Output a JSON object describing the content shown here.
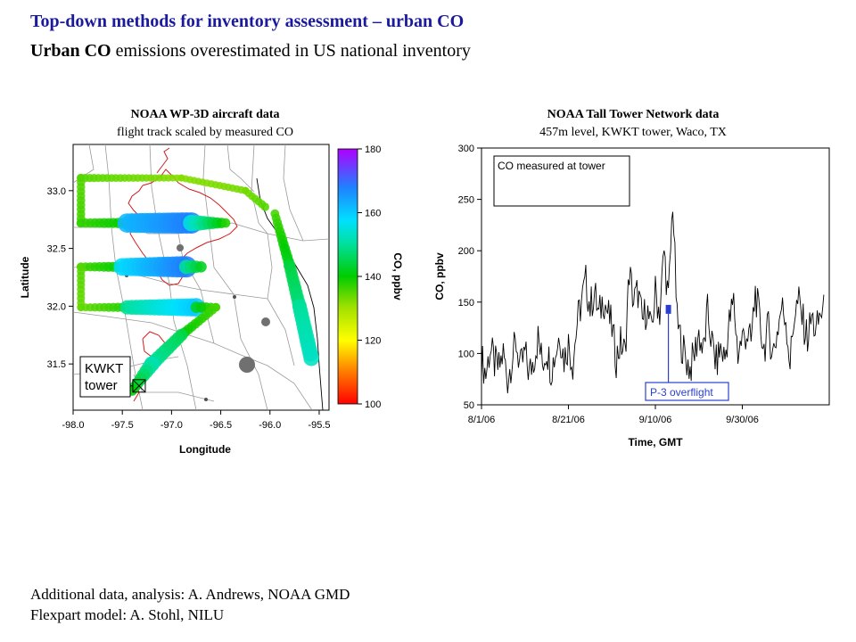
{
  "slide": {
    "title": "Top-down methods for inventory assessment – urban CO",
    "subtitle_bold": "Urban CO",
    "subtitle_rest": " emissions overestimated in US national inventory",
    "credits": [
      "Additional data, analysis: A. Andrews, NOAA GMD",
      "Flexpart model: A. Stohl, NILU"
    ]
  },
  "colors": {
    "title": "#1a1a9c",
    "map_county": "#9a9a9a",
    "map_city": "#cc1f1f",
    "ts_line": "#000000",
    "annotation_blue": "#2a3fd0",
    "marker_green": "#2ea82e",
    "gray_dot": "#707070"
  },
  "chart_data": [
    {
      "type": "scatter",
      "title": "NOAA WP-3D aircraft data",
      "subtitle": "flight track scaled by measured CO",
      "xlabel": "Longitude",
      "ylabel": "Latitude",
      "xlim": [
        -98.0,
        -95.4
      ],
      "ylim": [
        31.1,
        33.4
      ],
      "xticks": [
        "-98.0",
        "-97.5",
        "-97.0",
        "-96.5",
        "-96.0",
        "-95.5"
      ],
      "xtick_values": [
        -98.0,
        -97.5,
        -97.0,
        -96.5,
        -96.0,
        -95.5
      ],
      "yticks": [
        "31.5",
        "32.0",
        "32.5",
        "33.0"
      ],
      "ytick_values": [
        31.5,
        32.0,
        32.5,
        33.0
      ],
      "colorbar": {
        "label": "CO, ppbv",
        "range": [
          100,
          180
        ],
        "ticks": [
          "100",
          "120",
          "140",
          "160",
          "180"
        ],
        "tick_values": [
          100,
          120,
          140,
          160,
          180
        ]
      },
      "site_label": [
        "KWKT",
        "tower"
      ],
      "site": {
        "lon": -97.33,
        "lat": 31.31
      },
      "flight_track": [
        {
          "lon0": -97.92,
          "lat0": 33.11,
          "lon1": -96.9,
          "lat1": 33.11,
          "co0": 135,
          "co1": 132
        },
        {
          "lon0": -96.9,
          "lat0": 33.11,
          "lon1": -96.25,
          "lat1": 33.0,
          "co0": 132,
          "co1": 133
        },
        {
          "lon0": -96.25,
          "lat0": 33.0,
          "lon1": -96.05,
          "lat1": 32.86,
          "co0": 133,
          "co1": 135
        },
        {
          "lon0": -97.92,
          "lat0": 33.11,
          "lon1": -97.92,
          "lat1": 32.72,
          "co0": 135,
          "co1": 136
        },
        {
          "lon0": -97.92,
          "lat0": 32.72,
          "lon1": -97.45,
          "lat1": 32.72,
          "co0": 137,
          "co1": 140
        },
        {
          "lon0": -97.45,
          "lat0": 32.72,
          "lon1": -96.8,
          "lat1": 32.72,
          "co0": 162,
          "co1": 168
        },
        {
          "lon0": -96.8,
          "lat0": 32.72,
          "lon1": -96.45,
          "lat1": 32.72,
          "co0": 155,
          "co1": 138
        },
        {
          "lon0": -97.92,
          "lat0": 32.34,
          "lon1": -97.5,
          "lat1": 32.34,
          "co0": 136,
          "co1": 140
        },
        {
          "lon0": -97.5,
          "lat0": 32.34,
          "lon1": -96.85,
          "lat1": 32.34,
          "co0": 158,
          "co1": 168
        },
        {
          "lon0": -96.85,
          "lat0": 32.34,
          "lon1": -96.7,
          "lat1": 32.34,
          "co0": 150,
          "co1": 142
        },
        {
          "lon0": -97.92,
          "lat0": 32.34,
          "lon1": -97.92,
          "lat1": 31.99,
          "co0": 135,
          "co1": 134
        },
        {
          "lon0": -97.92,
          "lat0": 31.99,
          "lon1": -97.45,
          "lat1": 31.99,
          "co0": 134,
          "co1": 138
        },
        {
          "lon0": -97.45,
          "lat0": 31.99,
          "lon1": -96.75,
          "lat1": 31.99,
          "co0": 150,
          "co1": 160
        },
        {
          "lon0": -96.75,
          "lat0": 31.99,
          "lon1": -96.55,
          "lat1": 31.99,
          "co0": 142,
          "co1": 136
        },
        {
          "lon0": -96.55,
          "lat0": 31.99,
          "lon1": -96.9,
          "lat1": 31.75,
          "co0": 136,
          "co1": 140
        },
        {
          "lon0": -96.9,
          "lat0": 31.75,
          "lon1": -97.2,
          "lat1": 31.5,
          "co0": 145,
          "co1": 150
        },
        {
          "lon0": -97.2,
          "lat0": 31.5,
          "lon1": -97.4,
          "lat1": 31.27,
          "co0": 152,
          "co1": 140
        },
        {
          "lon0": -95.95,
          "lat0": 32.8,
          "lon1": -95.8,
          "lat1": 32.35,
          "co0": 136,
          "co1": 142
        },
        {
          "lon0": -95.8,
          "lat0": 32.35,
          "lon1": -95.7,
          "lat1": 32.0,
          "co0": 144,
          "co1": 148
        },
        {
          "lon0": -95.7,
          "lat0": 32.0,
          "lon1": -95.58,
          "lat1": 31.55,
          "co0": 150,
          "co1": 153
        }
      ]
    },
    {
      "type": "line",
      "title": "NOAA Tall Tower Network data",
      "subtitle": "457m level, KWKT tower, Waco, TX",
      "xlabel": "Time, GMT",
      "ylabel": "CO, ppbv",
      "xlim": [
        "2006-08-01",
        "2006-10-20"
      ],
      "ylim": [
        50,
        300
      ],
      "xticks": [
        "8/1/06",
        "8/21/06",
        "9/10/06",
        "9/30/06"
      ],
      "xtick_values": [
        "2006-08-01",
        "2006-08-21",
        "2006-09-10",
        "2006-09-30"
      ],
      "yticks": [
        "50",
        "100",
        "150",
        "200",
        "250",
        "300"
      ],
      "ytick_values": [
        50,
        100,
        150,
        200,
        250,
        300
      ],
      "legend_label": "CO measured at tower",
      "annotation_label": "P-3 overflight",
      "overflight_point": {
        "x": "2006-09-13",
        "y": 143
      },
      "series": [
        {
          "x": [
            "2006-08-01",
            "2006-08-02",
            "2006-08-03",
            "2006-08-04",
            "2006-08-05",
            "2006-08-06",
            "2006-08-07",
            "2006-08-08",
            "2006-08-09",
            "2006-08-10",
            "2006-08-11",
            "2006-08-12",
            "2006-08-13",
            "2006-08-14",
            "2006-08-15",
            "2006-08-16",
            "2006-08-17",
            "2006-08-18",
            "2006-08-19",
            "2006-08-20",
            "2006-08-21",
            "2006-08-22",
            "2006-08-23",
            "2006-08-24",
            "2006-08-25",
            "2006-08-26",
            "2006-08-27",
            "2006-08-28",
            "2006-08-29",
            "2006-08-30",
            "2006-08-31",
            "2006-09-01",
            "2006-09-02",
            "2006-09-03",
            "2006-09-04",
            "2006-09-05",
            "2006-09-06",
            "2006-09-07",
            "2006-09-08",
            "2006-09-09",
            "2006-09-10",
            "2006-09-11",
            "2006-09-12",
            "2006-09-13",
            "2006-09-14",
            "2006-09-15",
            "2006-09-16",
            "2006-09-17",
            "2006-09-18",
            "2006-09-19",
            "2006-09-20",
            "2006-09-21",
            "2006-09-22",
            "2006-09-23",
            "2006-09-24",
            "2006-09-25",
            "2006-09-26",
            "2006-09-27",
            "2006-09-28",
            "2006-09-29",
            "2006-09-30",
            "2006-10-01",
            "2006-10-02",
            "2006-10-03",
            "2006-10-04",
            "2006-10-05",
            "2006-10-06",
            "2006-10-07",
            "2006-10-08",
            "2006-10-09",
            "2006-10-10",
            "2006-10-11",
            "2006-10-12",
            "2006-10-13",
            "2006-10-14",
            "2006-10-15",
            "2006-10-16",
            "2006-10-17",
            "2006-10-18"
          ],
          "y": [
            95,
            80,
            105,
            90,
            85,
            100,
            75,
            95,
            110,
            85,
            100,
            80,
            95,
            115,
            90,
            105,
            85,
            100,
            120,
            95,
            110,
            90,
            130,
            150,
            170,
            145,
            160,
            135,
            155,
            140,
            125,
            95,
            110,
            100,
            180,
            150,
            160,
            130,
            145,
            120,
            160,
            140,
            200,
            150,
            250,
            130,
            110,
            95,
            85,
            100,
            120,
            100,
            140,
            110,
            90,
            105,
            95,
            130,
            150,
            100,
            115,
            120,
            110,
            160,
            130,
            105,
            125,
            100,
            120,
            145,
            135,
            90,
            140,
            150,
            130,
            115,
            135,
            120,
            140
          ]
        }
      ]
    }
  ]
}
